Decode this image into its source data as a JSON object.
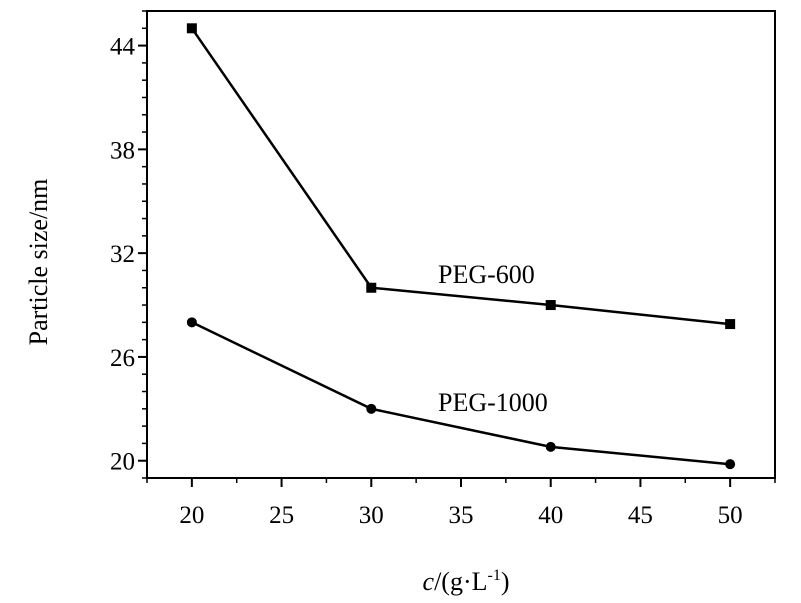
{
  "chart_data": {
    "type": "line",
    "xlabel": {
      "italic": "c",
      "prefix": "/(g·L",
      "sup": "-1",
      "suffix": ")"
    },
    "ylabel": "Particle size/nm",
    "xlim": [
      17.5,
      52.5
    ],
    "ylim": [
      19.0,
      46.0
    ],
    "xticks": [
      20,
      25,
      30,
      35,
      40,
      45,
      50
    ],
    "yticks": [
      20,
      26,
      32,
      38,
      44
    ],
    "grid": false,
    "legend": "none",
    "x": [
      20,
      30,
      40,
      50
    ],
    "series": [
      {
        "name": "PEG-600",
        "marker": "square",
        "values": [
          45.0,
          30.0,
          29.0,
          27.9
        ]
      },
      {
        "name": "PEG-1000",
        "marker": "circle",
        "values": [
          28.0,
          23.0,
          20.8,
          19.8
        ]
      }
    ],
    "colors": {
      "line": "#000000",
      "background": "#ffffff"
    }
  }
}
